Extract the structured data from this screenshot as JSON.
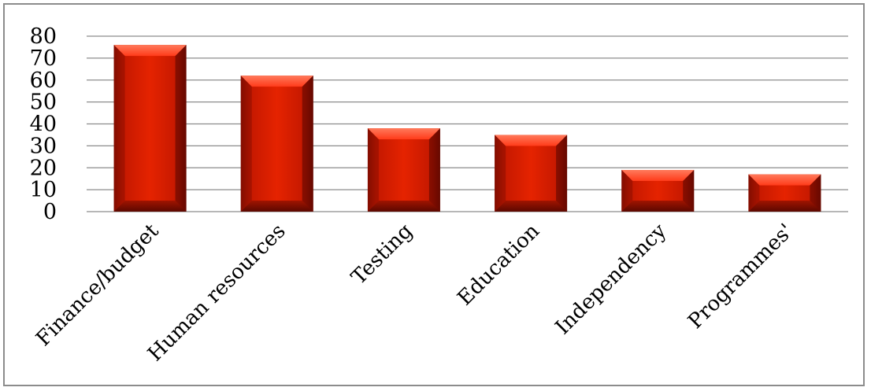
{
  "chart_data": {
    "type": "bar",
    "title": "",
    "xlabel": "",
    "ylabel": "",
    "categories": [
      "Finance/budget",
      "Human resources",
      "Testing",
      "Education",
      "Independency",
      "Programmes'"
    ],
    "values": [
      76,
      62,
      38,
      35,
      19,
      17
    ],
    "ylim": [
      0,
      80
    ],
    "yticks": [
      0,
      10,
      20,
      30,
      40,
      50,
      60,
      70,
      80
    ],
    "grid": true,
    "legend": "none",
    "colors": {
      "bar_main": "#d41c00",
      "bar_dark": "#6e0a00",
      "bar_light": "#ff5a3c",
      "gridline": "#8c8c8c",
      "axis": "#8c8c8c"
    }
  }
}
